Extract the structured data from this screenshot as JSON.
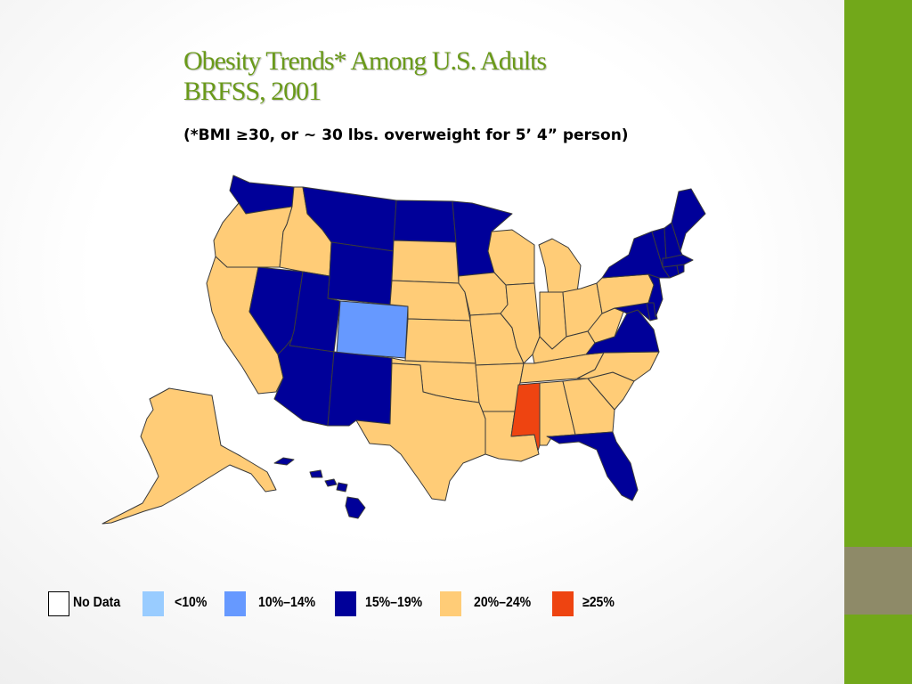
{
  "title": {
    "line1": "Obesity Trends* Among U.S. Adults",
    "line2": "BRFSS, 2001"
  },
  "subtitle": "(*BMI ≥30, or ~ 30 lbs. overweight for 5’ 4” person)",
  "colors": {
    "no_data": "#ffffff",
    "lt10": "#99ccff",
    "10_14": "#6699ff",
    "15_19": "#000099",
    "20_24": "#ffcc77",
    "ge25": "#ee4411",
    "accent_green": "#72a81a",
    "accent_block": "#8e8a68",
    "title_green": "#6a9a1a"
  },
  "legend": [
    {
      "key": "no_data",
      "label": "No Data"
    },
    {
      "key": "lt10",
      "label": "<10%"
    },
    {
      "key": "10_14",
      "label": "10%–14%"
    },
    {
      "key": "15_19",
      "label": "15%–19%"
    },
    {
      "key": "20_24",
      "label": "20%–24%"
    },
    {
      "key": "ge25",
      "label": "≥25%"
    }
  ],
  "states": {
    "WA": "15_19",
    "OR": "20_24",
    "CA": "20_24",
    "NV": "15_19",
    "ID": "20_24",
    "MT": "15_19",
    "WY": "15_19",
    "UT": "15_19",
    "AZ": "15_19",
    "CO": "10_14",
    "NM": "15_19",
    "ND": "15_19",
    "SD": "20_24",
    "NE": "20_24",
    "KS": "20_24",
    "OK": "20_24",
    "TX": "20_24",
    "MN": "15_19",
    "IA": "20_24",
    "MO": "20_24",
    "AR": "20_24",
    "LA": "20_24",
    "WI": "20_24",
    "IL": "20_24",
    "MI": "20_24",
    "IN": "20_24",
    "OH": "20_24",
    "KY": "20_24",
    "TN": "20_24",
    "MS": "ge25",
    "AL": "20_24",
    "GA": "20_24",
    "FL": "15_19",
    "SC": "20_24",
    "NC": "20_24",
    "VA": "15_19",
    "WV": "20_24",
    "MD": "15_19",
    "DE": "15_19",
    "PA": "20_24",
    "NJ": "15_19",
    "NY": "15_19",
    "CT": "15_19",
    "RI": "15_19",
    "MA": "15_19",
    "VT": "15_19",
    "NH": "15_19",
    "ME": "15_19",
    "AK": "20_24",
    "HI": "15_19"
  }
}
